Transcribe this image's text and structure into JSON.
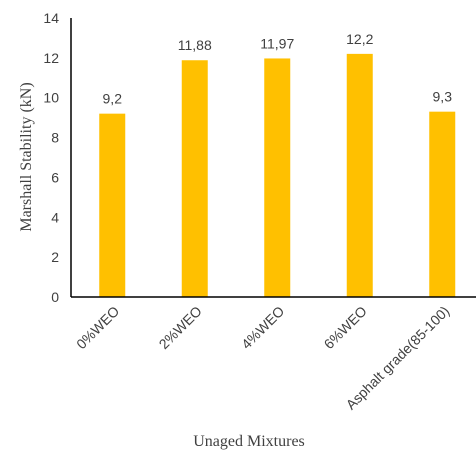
{
  "chart_data": {
    "type": "bar",
    "categories": [
      "0%WEO",
      "2%WEO",
      "4%WEO",
      "6%WEO",
      "Asphalt grade(85-100)"
    ],
    "values": [
      9.2,
      11.88,
      11.97,
      12.2,
      9.3
    ],
    "data_labels": [
      "9,2",
      "11,88",
      "11,97",
      "12,2",
      "9,3"
    ],
    "xlabel": "Unaged Mixtures",
    "ylabel": "Marshall Stability (kN)",
    "ylim": [
      0,
      14
    ],
    "yticks": [
      0,
      2,
      4,
      6,
      8,
      10,
      12,
      14
    ],
    "grid": false,
    "bar_color": "#FFC000",
    "axis_color": "#000000",
    "text_color": "#404040"
  }
}
